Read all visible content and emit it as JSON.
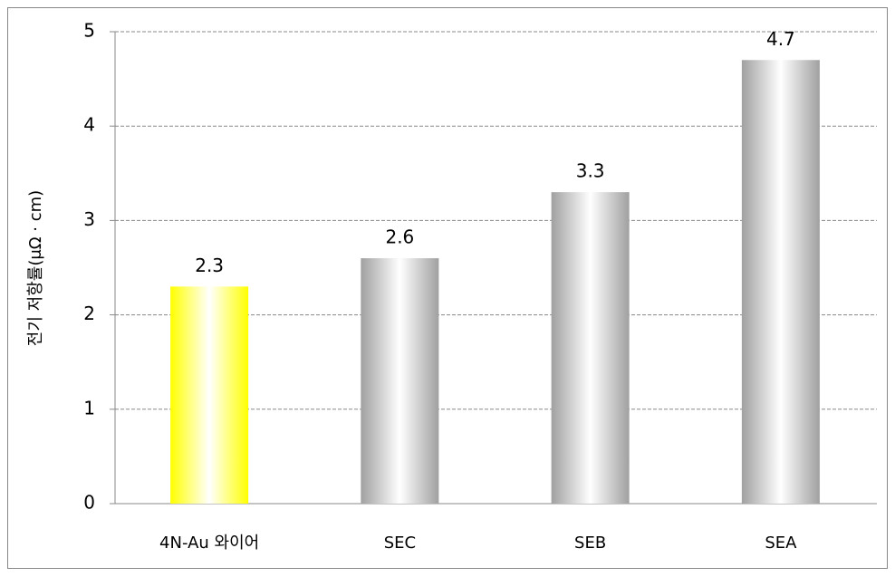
{
  "chart_data": {
    "type": "bar",
    "y_label": "전기 저항률(μΩ · cm)",
    "categories": [
      "4N-Au 와이어",
      "SEC",
      "SEB",
      "SEA"
    ],
    "values": [
      2.3,
      2.6,
      3.3,
      4.7
    ],
    "colors": [
      "#ffff00",
      "#a0a0a0",
      "#a0a0a0",
      "#a0a0a0"
    ],
    "ylim": [
      0,
      5
    ],
    "yticks": [
      0,
      1,
      2,
      3,
      4,
      5
    ],
    "grid": true
  }
}
